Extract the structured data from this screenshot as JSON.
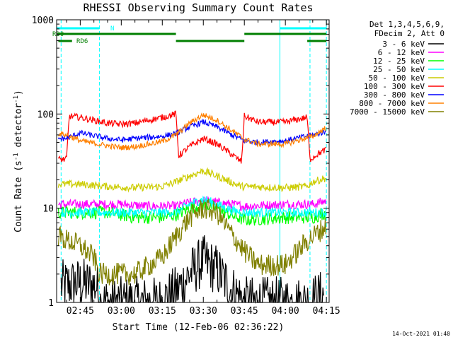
{
  "chart_data": {
    "type": "line",
    "title": "RHESSI Observing Summary Count Rates",
    "xlabel": "Start Time (12-Feb-06 02:36:22)",
    "ylabel_main": "Count Rate (s",
    "ylabel_sup1": "-1",
    "ylabel_mid": " detector",
    "ylabel_sup2": "-1",
    "ylabel_end": ")",
    "y_scale": "log",
    "ylim": [
      1,
      1000
    ],
    "xlim": [
      "02:36:22",
      "04:16:00"
    ],
    "x_ticks": [
      "02:45",
      "03:00",
      "03:15",
      "03:30",
      "03:45",
      "04:00",
      "04:15"
    ],
    "y_ticks": [
      {
        "label": "1",
        "value": 1
      },
      {
        "label": "10",
        "value": 10
      },
      {
        "label": "100",
        "value": 100
      },
      {
        "label": "1000",
        "value": 1000
      }
    ],
    "grid": false,
    "legend_position": "right",
    "legend_header": [
      "Det 1,3,4,5,6,9,",
      "FDecim 2, Att 0"
    ],
    "footer": "14-Oct-2021 01:40",
    "night_times": [
      "02:36:22",
      "02:38",
      "02:52",
      "04:09",
      "04:15"
    ],
    "saa_times": [
      "03:58"
    ],
    "flag_bars": [
      {
        "label": "N",
        "color": "#00ffff",
        "segments": [
          [
            "02:36:22",
            "02:52"
          ],
          [
            "03:58",
            "04:15"
          ]
        ]
      },
      {
        "label": "RD0",
        "color": "#007f00",
        "segments": [
          [
            "02:36:22",
            "03:20"
          ],
          [
            "03:45",
            "04:15"
          ]
        ]
      },
      {
        "label": "RD6",
        "color": "#007f00",
        "segments": [
          [
            "02:37",
            "02:42"
          ],
          [
            "03:20",
            "03:45"
          ],
          [
            "04:08",
            "04:15"
          ]
        ]
      }
    ],
    "series": [
      {
        "name": "3 - 6 keV",
        "color": "#000000",
        "x": [
          "02:38",
          "02:45",
          "02:51",
          "02:52",
          "03:00",
          "03:10",
          "03:14",
          "03:20",
          "03:25",
          "03:30",
          "03:35",
          "03:40",
          "03:44",
          "03:45",
          "04:00",
          "04:08",
          "04:14"
        ],
        "y": [
          1.5,
          1.6,
          1.5,
          1.0,
          1.0,
          1.0,
          1.0,
          1.3,
          2.0,
          2.8,
          2.2,
          1.4,
          1.1,
          1.0,
          1.0,
          1.0,
          1.2
        ]
      },
      {
        "name": "6 - 12 keV",
        "color": "#ff00ff",
        "x": [
          "02:37",
          "02:45",
          "03:00",
          "03:10",
          "03:20",
          "03:25",
          "03:30",
          "03:35",
          "03:40",
          "03:45",
          "04:00",
          "04:10",
          "04:15"
        ],
        "y": [
          11,
          11,
          11,
          10.5,
          10.5,
          11.5,
          12,
          11.5,
          11,
          10.5,
          11,
          11,
          12
        ]
      },
      {
        "name": "12 - 25 keV",
        "color": "#00ff00",
        "x": [
          "02:37",
          "02:45",
          "02:55",
          "03:05",
          "03:15",
          "03:20",
          "03:25",
          "03:30",
          "03:35",
          "03:40",
          "03:45",
          "04:00",
          "04:10",
          "04:15"
        ],
        "y": [
          9,
          9,
          9,
          8,
          8,
          8.5,
          10,
          11,
          10,
          8.5,
          7.5,
          8,
          8,
          9
        ]
      },
      {
        "name": "25 - 50 keV",
        "color": "#00ffff",
        "x": [
          "02:38",
          "02:45",
          "02:55",
          "03:05",
          "03:15",
          "03:20",
          "03:25",
          "03:30",
          "03:35",
          "03:40",
          "03:45",
          "04:00",
          "04:10",
          "04:15"
        ],
        "y": [
          9,
          9,
          9,
          9,
          9,
          9,
          11,
          12.5,
          11,
          9.5,
          9,
          9,
          9,
          9
        ]
      },
      {
        "name": "50 - 100 keV",
        "color": "#cccc00",
        "x": [
          "02:37",
          "02:45",
          "02:55",
          "03:05",
          "03:15",
          "03:20",
          "03:25",
          "03:30",
          "03:35",
          "03:40",
          "03:44",
          "03:45",
          "04:00",
          "04:08",
          "04:10",
          "04:15"
        ],
        "y": [
          18,
          18,
          17,
          16.5,
          17,
          19,
          22,
          25,
          22,
          19,
          17,
          17,
          16.5,
          17,
          19,
          21
        ]
      },
      {
        "name": "100 - 300 keV",
        "color": "#ff0000",
        "x": [
          "02:37",
          "02:40",
          "02:41",
          "02:45",
          "02:55",
          "03:00",
          "03:05",
          "03:15",
          "03:20",
          "03:21",
          "03:25",
          "03:30",
          "03:35",
          "03:40",
          "03:44",
          "03:45",
          "03:50",
          "04:00",
          "04:08",
          "04:09",
          "04:12",
          "04:15"
        ],
        "y": [
          33,
          33,
          95,
          92,
          80,
          78,
          80,
          92,
          100,
          36,
          45,
          55,
          48,
          38,
          31,
          95,
          82,
          82,
          92,
          33,
          38,
          42
        ]
      },
      {
        "name": "300 - 800 keV",
        "color": "#0000ff",
        "x": [
          "02:37",
          "02:40",
          "02:45",
          "02:55",
          "03:00",
          "03:05",
          "03:15",
          "03:20",
          "03:25",
          "03:30",
          "03:35",
          "03:40",
          "03:45",
          "03:50",
          "04:00",
          "04:10",
          "04:15"
        ],
        "y": [
          55,
          55,
          63,
          55,
          53,
          55,
          58,
          62,
          73,
          82,
          73,
          61,
          52,
          50,
          52,
          60,
          65
        ]
      },
      {
        "name": "800 - 7000 keV",
        "color": "#ff8000",
        "x": [
          "02:37",
          "02:40",
          "02:45",
          "02:55",
          "03:00",
          "03:05",
          "03:15",
          "03:20",
          "03:25",
          "03:30",
          "03:35",
          "03:40",
          "03:45",
          "03:50",
          "04:00",
          "04:10",
          "04:15"
        ],
        "y": [
          62,
          60,
          52,
          46,
          44,
          45,
          51,
          60,
          80,
          98,
          86,
          68,
          54,
          48,
          48,
          58,
          72
        ]
      },
      {
        "name": "7000 - 15000 keV",
        "color": "#808000",
        "x": [
          "02:37",
          "02:45",
          "02:50",
          "02:52",
          "03:05",
          "03:15",
          "03:20",
          "03:25",
          "03:30",
          "03:35",
          "03:40",
          "03:45",
          "03:50",
          "04:00",
          "04:08",
          "04:15"
        ],
        "y": [
          5,
          4,
          3,
          2,
          2,
          3,
          5,
          8,
          10,
          9,
          5.5,
          3.5,
          2.5,
          2.5,
          4.5,
          6.5
        ]
      }
    ]
  }
}
